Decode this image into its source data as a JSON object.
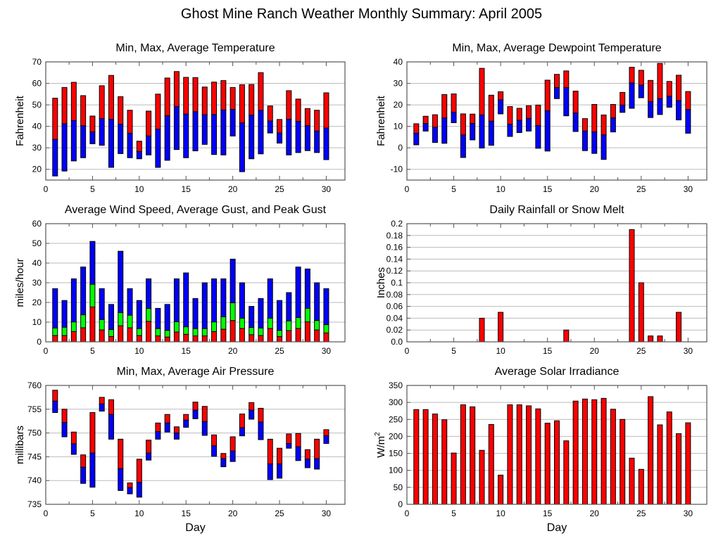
{
  "title": "Ghost Mine Ranch Weather Monthly Summary: April 2005",
  "colors": {
    "red": "#ff0000",
    "blue": "#0000ff",
    "green": "#00ff00",
    "grid": "#bbbbbb",
    "frame": "#555555"
  },
  "chart_data": [
    {
      "id": "temperature",
      "type": "bar",
      "subtype": "floating-range",
      "title": "Min, Max, Average Temperature",
      "xlabel": "",
      "ylabel": "Fahrenheit",
      "xlim": [
        0,
        32
      ],
      "ylim": [
        15,
        70
      ],
      "xticks": [
        0,
        5,
        10,
        15,
        20,
        25,
        30
      ],
      "yticks": [
        20,
        30,
        40,
        50,
        60,
        70
      ],
      "grid": true,
      "x": [
        1,
        2,
        3,
        4,
        5,
        6,
        7,
        8,
        9,
        10,
        11,
        12,
        13,
        14,
        15,
        16,
        17,
        18,
        19,
        20,
        21,
        22,
        23,
        24,
        25,
        26,
        27,
        28,
        29,
        30
      ],
      "series": [
        {
          "name": "Max",
          "color": "#ff0000",
          "values": [
            53.1,
            58.1,
            60.5,
            54.3,
            44.8,
            58.9,
            63.7,
            53.8,
            47.5,
            33.1,
            47.1,
            55.0,
            62.5,
            65.5,
            62.8,
            62.7,
            58.3,
            60.6,
            61.3,
            58.1,
            59.4,
            59.5,
            65.0,
            49.5,
            43.2,
            56.6,
            52.7,
            48.3,
            47.5,
            55.6
          ]
        },
        {
          "name": "Average",
          "values": [
            33.9,
            41.2,
            42.7,
            40.3,
            37.4,
            43.6,
            43.3,
            41.0,
            36.8,
            28.3,
            35.5,
            38.7,
            44.9,
            49.2,
            45.7,
            46.8,
            45.4,
            45.5,
            47.6,
            47.9,
            41.6,
            45.2,
            47.4,
            42.5,
            36.9,
            43.3,
            42.3,
            40.3,
            37.8,
            39.2
          ]
        },
        {
          "name": "Min",
          "color": "#0000ff",
          "values": [
            16.9,
            19.2,
            23.9,
            25.4,
            31.9,
            31.2,
            20.9,
            27.3,
            25.4,
            24.9,
            26.7,
            20.9,
            24.2,
            29.2,
            25.4,
            28.6,
            31.6,
            26.9,
            26.7,
            35.5,
            18.9,
            24.9,
            27.2,
            36.9,
            32.2,
            26.7,
            27.8,
            28.7,
            27.8,
            24.5
          ]
        }
      ]
    },
    {
      "id": "dewpoint",
      "type": "bar",
      "subtype": "floating-range",
      "title": "Min, Max, Average Dewpoint Temperature",
      "xlabel": "",
      "ylabel": "Fahrenheit",
      "xlim": [
        0,
        32
      ],
      "ylim": [
        -15,
        40
      ],
      "xticks": [
        0,
        5,
        10,
        15,
        20,
        25,
        30
      ],
      "yticks": [
        -10,
        0,
        10,
        20,
        30,
        40
      ],
      "grid": true,
      "x": [
        1,
        2,
        3,
        4,
        5,
        6,
        7,
        8,
        9,
        10,
        11,
        12,
        13,
        14,
        15,
        16,
        17,
        18,
        19,
        20,
        21,
        22,
        23,
        24,
        25,
        26,
        27,
        28,
        29,
        30
      ],
      "series": [
        {
          "name": "Max",
          "color": "#ff0000",
          "values": [
            11.2,
            14.7,
            15.4,
            24.8,
            25.1,
            15.8,
            15.7,
            37.0,
            24.5,
            26.1,
            19.2,
            18.4,
            19.6,
            19.9,
            31.5,
            34.2,
            35.8,
            26.4,
            13.6,
            20.2,
            15.3,
            20.2,
            25.8,
            37.5,
            36.1,
            31.4,
            39.3,
            30.9,
            33.8,
            26.2
          ]
        },
        {
          "name": "Average",
          "values": [
            6.8,
            11.3,
            9.6,
            13.9,
            16.6,
            6.0,
            11.3,
            15.3,
            12.4,
            22.3,
            11.0,
            12.8,
            13.7,
            10.4,
            17.2,
            28.0,
            28.0,
            16.2,
            7.8,
            7.4,
            6.0,
            13.9,
            19.9,
            30.2,
            29.2,
            21.5,
            22.9,
            24.0,
            22.0,
            17.8
          ]
        },
        {
          "name": "Min",
          "color": "#0000ff",
          "values": [
            1.4,
            7.8,
            2.5,
            2.1,
            11.7,
            -4.5,
            3.7,
            -0.1,
            1.2,
            15.8,
            5.3,
            7.1,
            7.8,
            -0.2,
            -1.5,
            22.9,
            14.9,
            7.6,
            -1.3,
            -2.6,
            -5.4,
            7.4,
            16.5,
            18.4,
            23.3,
            14.1,
            15.5,
            18.9,
            13.0,
            6.8
          ]
        }
      ]
    },
    {
      "id": "wind",
      "type": "bar",
      "subtype": "stacked-overlap",
      "title": "Average Wind Speed, Average Gust, and Peak Gust",
      "xlabel": "",
      "ylabel": "miles/hour",
      "xlim": [
        0,
        32
      ],
      "ylim": [
        0,
        60
      ],
      "xticks": [
        0,
        5,
        10,
        15,
        20,
        25,
        30
      ],
      "yticks": [
        0,
        10,
        20,
        30,
        40,
        50,
        60
      ],
      "grid": true,
      "x": [
        1,
        2,
        3,
        4,
        5,
        6,
        7,
        8,
        9,
        10,
        11,
        12,
        13,
        14,
        15,
        16,
        17,
        18,
        19,
        20,
        21,
        22,
        23,
        24,
        25,
        26,
        27,
        28,
        29,
        30
      ],
      "series": [
        {
          "name": "Peak Gust",
          "color": "#0000ff",
          "values": [
            27,
            21,
            32,
            38,
            51,
            27,
            19,
            46,
            27,
            21,
            32,
            17,
            19,
            32,
            35,
            22,
            30,
            32,
            32,
            42,
            30,
            18,
            22,
            32,
            21,
            25,
            38,
            37,
            30,
            27
          ]
        },
        {
          "name": "Average Gust",
          "color": "#00ff00",
          "values": [
            7.0,
            7.4,
            10.1,
            13.7,
            29.2,
            11.3,
            6.2,
            14.8,
            13.5,
            6.7,
            16.9,
            6.7,
            5.8,
            10.2,
            7.6,
            6.7,
            6.7,
            10.1,
            12.7,
            19.8,
            12.0,
            7.3,
            7.0,
            12.0,
            5.8,
            10.6,
            12.3,
            17.0,
            10.8,
            8.7
          ]
        },
        {
          "name": "Average Wind Speed",
          "color": "#ff0000",
          "values": [
            3.2,
            3.2,
            5.2,
            7.1,
            17.7,
            6.0,
            2.7,
            8.1,
            7.1,
            3.2,
            10.4,
            3.0,
            2.4,
            5.0,
            3.8,
            3.0,
            3.0,
            5.2,
            6.4,
            10.8,
            6.8,
            3.6,
            3.2,
            6.8,
            2.7,
            5.7,
            6.8,
            10.1,
            6.0,
            4.5
          ]
        }
      ]
    },
    {
      "id": "rainfall",
      "type": "bar",
      "title": "Daily Rainfall or Snow Melt",
      "xlabel": "",
      "ylabel": "Inches",
      "xlim": [
        0,
        32
      ],
      "ylim": [
        0,
        0.2
      ],
      "xticks": [
        0,
        5,
        10,
        15,
        20,
        25,
        30
      ],
      "yticks": [
        0.0,
        0.02,
        0.04,
        0.06,
        0.08,
        0.1,
        0.12,
        0.14,
        0.16,
        0.18,
        0.2
      ],
      "ytick_labels": [
        "0.0",
        "0.02",
        "0.04",
        "0.06",
        "0.08",
        "0.1",
        "0.12",
        "0.14",
        "0.16",
        "0.18",
        "0.2"
      ],
      "grid": true,
      "x": [
        8,
        10,
        17,
        24,
        25,
        26,
        27,
        29
      ],
      "series": [
        {
          "name": "Rainfall",
          "color": "#ff0000",
          "values": [
            0.04,
            0.05,
            0.02,
            0.19,
            0.1,
            0.01,
            0.01,
            0.05
          ]
        }
      ]
    },
    {
      "id": "pressure",
      "type": "bar",
      "subtype": "floating-range",
      "title": "Min, Max, Average Air Pressure",
      "xlabel": "Day",
      "ylabel": "millibars",
      "xlim": [
        0,
        32
      ],
      "ylim": [
        735,
        760
      ],
      "xticks": [
        0,
        5,
        10,
        15,
        20,
        25,
        30
      ],
      "yticks": [
        735,
        740,
        745,
        750,
        755,
        760
      ],
      "grid": true,
      "x": [
        1,
        2,
        3,
        4,
        5,
        6,
        7,
        8,
        9,
        10,
        11,
        12,
        13,
        14,
        15,
        16,
        17,
        18,
        19,
        20,
        21,
        22,
        23,
        24,
        25,
        26,
        27,
        28,
        29,
        30
      ],
      "series": [
        {
          "name": "Max",
          "color": "#ff0000",
          "values": [
            759.0,
            755.0,
            750.2,
            745.4,
            754.3,
            757.5,
            757.0,
            748.7,
            739.5,
            744.5,
            748.5,
            752.1,
            753.9,
            751.3,
            753.9,
            756.5,
            755.6,
            749.6,
            745.7,
            749.2,
            754.0,
            756.4,
            755.2,
            748.7,
            746.8,
            749.8,
            749.9,
            746.5,
            748.7,
            750.7
          ]
        },
        {
          "name": "Average",
          "values": [
            756.7,
            752.2,
            747.7,
            742.8,
            745.8,
            756.1,
            753.9,
            742.5,
            738.5,
            739.6,
            745.8,
            750.3,
            752.1,
            750.0,
            752.7,
            754.8,
            752.4,
            747.3,
            744.6,
            746.2,
            751.1,
            754.8,
            752.3,
            743.5,
            743.5,
            747.8,
            747.1,
            744.5,
            744.6,
            749.4
          ]
        },
        {
          "name": "Min",
          "color": "#0000ff",
          "values": [
            754.3,
            749.2,
            745.5,
            739.4,
            738.6,
            754.6,
            748.7,
            737.9,
            737.2,
            736.5,
            744.3,
            748.7,
            750.2,
            748.7,
            751.2,
            753.0,
            749.5,
            745.1,
            742.9,
            744.0,
            749.4,
            752.9,
            748.6,
            740.2,
            740.5,
            746.8,
            744.2,
            742.7,
            742.4,
            747.8
          ]
        }
      ]
    },
    {
      "id": "solar",
      "type": "bar",
      "title": "Average Solar Irradiance",
      "xlabel": "Day",
      "ylabel": "W/m2",
      "xlim": [
        0,
        32
      ],
      "ylim": [
        0,
        350
      ],
      "xticks": [
        0,
        5,
        10,
        15,
        20,
        25,
        30
      ],
      "yticks": [
        0,
        50,
        100,
        150,
        200,
        250,
        300,
        350
      ],
      "grid": true,
      "x": [
        1,
        2,
        3,
        4,
        5,
        6,
        7,
        8,
        9,
        10,
        11,
        12,
        13,
        14,
        15,
        16,
        17,
        18,
        19,
        20,
        21,
        22,
        23,
        24,
        25,
        26,
        27,
        28,
        29,
        30
      ],
      "series": [
        {
          "name": "Solar Irradiance",
          "color": "#ff0000",
          "values": [
            279,
            279,
            266,
            249,
            151,
            293,
            287,
            159,
            235,
            86,
            293,
            293,
            290,
            281,
            239,
            246,
            187,
            304,
            310,
            308,
            312,
            280,
            250,
            136,
            103,
            317,
            234,
            272,
            208,
            240
          ]
        }
      ]
    }
  ]
}
